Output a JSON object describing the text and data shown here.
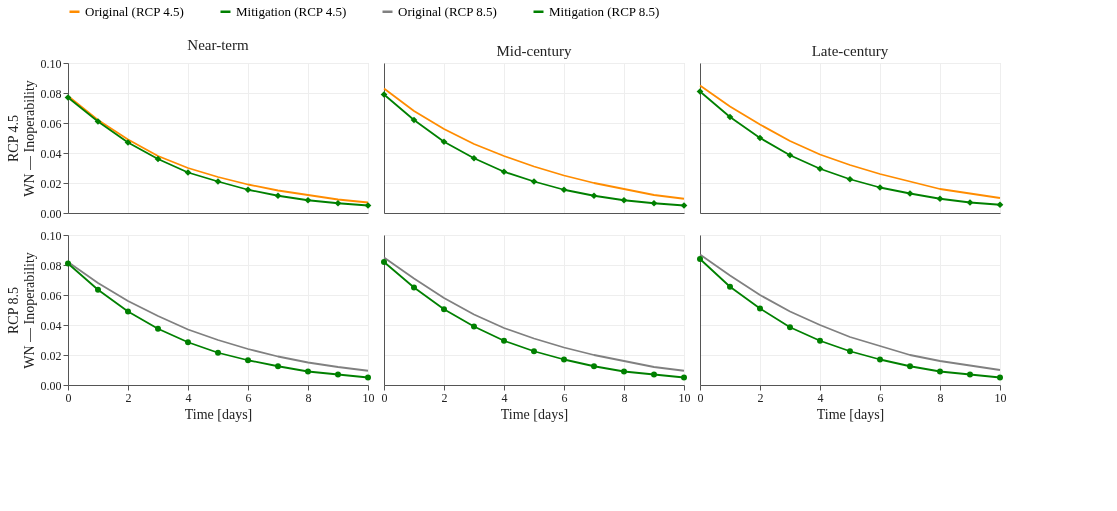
{
  "chart_data": [
    {
      "type": "line",
      "title": "Near-term",
      "ylabel": "RCP 4.5\nWN — Inoperability",
      "x": [
        0,
        1,
        2,
        3,
        4,
        5,
        6,
        7,
        8,
        9,
        10
      ],
      "xlim": [
        0,
        10
      ],
      "xticks": [
        0,
        2,
        4,
        6,
        8,
        10
      ],
      "ylim": [
        0,
        0.1
      ],
      "yticks": [
        {
          "value": 0,
          "label": "0.00"
        },
        {
          "value": 0.02,
          "label": "0.02"
        },
        {
          "value": 0.04,
          "label": "0.04"
        },
        {
          "value": 0.06,
          "label": "0.06"
        },
        {
          "value": 0.08,
          "label": "0.08"
        },
        {
          "value": 0.1,
          "label": "0.10"
        }
      ],
      "grid": true,
      "legend": "top",
      "tick_labels": "y",
      "series": [
        {
          "name": "Original (RCP 4.5)",
          "color": "#ff8c00",
          "marker": "none",
          "values": [
            0.078,
            0.062,
            0.049,
            0.038,
            0.03,
            0.024,
            0.019,
            0.015,
            0.012,
            0.009,
            0.007
          ]
        },
        {
          "name": "Mitigation (RCP 4.5)",
          "color": "#008000",
          "marker": "diamond",
          "values": [
            0.077,
            0.061,
            0.047,
            0.036,
            0.027,
            0.021,
            0.0155,
            0.0115,
            0.0085,
            0.0065,
            0.005
          ]
        }
      ]
    },
    {
      "type": "line",
      "title": "Mid-century",
      "x": [
        0,
        1,
        2,
        3,
        4,
        5,
        6,
        7,
        8,
        9,
        10
      ],
      "xlim": [
        0,
        10
      ],
      "xticks": [
        0,
        2,
        4,
        6,
        8,
        10
      ],
      "ylim": [
        0,
        0.1
      ],
      "yticks": [
        {
          "value": 0,
          "label": "0.00"
        },
        {
          "value": 0.02,
          "label": "0.02"
        },
        {
          "value": 0.04,
          "label": "0.04"
        },
        {
          "value": 0.06,
          "label": "0.06"
        },
        {
          "value": 0.08,
          "label": "0.08"
        },
        {
          "value": 0.1,
          "label": "0.10"
        }
      ],
      "grid": true,
      "legend": "top",
      "tick_labels": false,
      "series": [
        {
          "name": "Original (RCP 4.5)",
          "color": "#ff8c00",
          "marker": "none",
          "values": [
            0.083,
            0.068,
            0.056,
            0.046,
            0.038,
            0.031,
            0.025,
            0.02,
            0.016,
            0.012,
            0.0095
          ]
        },
        {
          "name": "Mitigation (RCP 4.5)",
          "color": "#008000",
          "marker": "diamond",
          "values": [
            0.079,
            0.062,
            0.0475,
            0.0365,
            0.0275,
            0.021,
            0.0155,
            0.0115,
            0.0085,
            0.0065,
            0.005
          ]
        }
      ]
    },
    {
      "type": "line",
      "title": "Late-century",
      "x": [
        0,
        1,
        2,
        3,
        4,
        5,
        6,
        7,
        8,
        9,
        10
      ],
      "xlim": [
        0,
        10
      ],
      "xticks": [
        0,
        2,
        4,
        6,
        8,
        10
      ],
      "ylim": [
        0,
        0.1
      ],
      "yticks": [
        {
          "value": 0,
          "label": "0.00"
        },
        {
          "value": 0.02,
          "label": "0.02"
        },
        {
          "value": 0.04,
          "label": "0.04"
        },
        {
          "value": 0.06,
          "label": "0.06"
        },
        {
          "value": 0.08,
          "label": "0.08"
        },
        {
          "value": 0.1,
          "label": "0.10"
        }
      ],
      "grid": true,
      "legend": "top",
      "tick_labels": false,
      "series": [
        {
          "name": "Original (RCP 4.5)",
          "color": "#ff8c00",
          "marker": "none",
          "values": [
            0.085,
            0.071,
            0.059,
            0.048,
            0.039,
            0.032,
            0.026,
            0.021,
            0.016,
            0.013,
            0.01
          ]
        },
        {
          "name": "Mitigation (RCP 4.5)",
          "color": "#008000",
          "marker": "diamond",
          "values": [
            0.081,
            0.064,
            0.05,
            0.0385,
            0.0295,
            0.0225,
            0.017,
            0.013,
            0.0095,
            0.007,
            0.0055
          ]
        }
      ]
    },
    {
      "type": "line",
      "xlabel": "Time [days]",
      "ylabel": "RCP 8.5\nWN — Inoperability",
      "x": [
        0,
        1,
        2,
        3,
        4,
        5,
        6,
        7,
        8,
        9,
        10
      ],
      "xlim": [
        0,
        10
      ],
      "xticks": [
        0,
        2,
        4,
        6,
        8,
        10
      ],
      "ylim": [
        0,
        0.1
      ],
      "yticks": [
        {
          "value": 0,
          "label": "0.00"
        },
        {
          "value": 0.02,
          "label": "0.02"
        },
        {
          "value": 0.04,
          "label": "0.04"
        },
        {
          "value": 0.06,
          "label": "0.06"
        },
        {
          "value": 0.08,
          "label": "0.08"
        },
        {
          "value": 0.1,
          "label": "0.10"
        }
      ],
      "grid": true,
      "legend": "top",
      "series": [
        {
          "name": "Original (RCP 8.5)",
          "color": "#808080",
          "marker": "none",
          "values": [
            0.082,
            0.068,
            0.056,
            0.046,
            0.037,
            0.03,
            0.024,
            0.019,
            0.015,
            0.012,
            0.0095
          ]
        },
        {
          "name": "Mitigation (RCP 8.5)",
          "color": "#008000",
          "marker": "circle",
          "values": [
            0.081,
            0.0635,
            0.049,
            0.0375,
            0.0285,
            0.0215,
            0.0165,
            0.0125,
            0.009,
            0.007,
            0.005
          ]
        }
      ]
    },
    {
      "type": "line",
      "xlabel": "Time [days]",
      "x": [
        0,
        1,
        2,
        3,
        4,
        5,
        6,
        7,
        8,
        9,
        10
      ],
      "xlim": [
        0,
        10
      ],
      "xticks": [
        0,
        2,
        4,
        6,
        8,
        10
      ],
      "ylim": [
        0,
        0.1
      ],
      "yticks": [
        {
          "value": 0,
          "label": "0.00"
        },
        {
          "value": 0.02,
          "label": "0.02"
        },
        {
          "value": 0.04,
          "label": "0.04"
        },
        {
          "value": 0.06,
          "label": "0.06"
        },
        {
          "value": 0.08,
          "label": "0.08"
        },
        {
          "value": 0.1,
          "label": "0.10"
        }
      ],
      "grid": true,
      "legend": "top",
      "tick_labels": "x",
      "series": [
        {
          "name": "Original (RCP 8.5)",
          "color": "#808080",
          "marker": "none",
          "values": [
            0.085,
            0.071,
            0.058,
            0.047,
            0.038,
            0.031,
            0.025,
            0.02,
            0.016,
            0.012,
            0.0095
          ]
        },
        {
          "name": "Mitigation (RCP 8.5)",
          "color": "#008000",
          "marker": "circle",
          "values": [
            0.082,
            0.065,
            0.0505,
            0.039,
            0.0295,
            0.0225,
            0.017,
            0.0125,
            0.009,
            0.007,
            0.005
          ]
        }
      ]
    },
    {
      "type": "line",
      "xlabel": "Time [days]",
      "x": [
        0,
        1,
        2,
        3,
        4,
        5,
        6,
        7,
        8,
        9,
        10
      ],
      "xlim": [
        0,
        10
      ],
      "xticks": [
        0,
        2,
        4,
        6,
        8,
        10
      ],
      "ylim": [
        0,
        0.1
      ],
      "yticks": [
        {
          "value": 0,
          "label": "0.00"
        },
        {
          "value": 0.02,
          "label": "0.02"
        },
        {
          "value": 0.04,
          "label": "0.04"
        },
        {
          "value": 0.06,
          "label": "0.06"
        },
        {
          "value": 0.08,
          "label": "0.08"
        },
        {
          "value": 0.1,
          "label": "0.10"
        }
      ],
      "grid": true,
      "legend": "top",
      "tick_labels": "x",
      "series": [
        {
          "name": "Original (RCP 8.5)",
          "color": "#808080",
          "marker": "none",
          "values": [
            0.087,
            0.073,
            0.06,
            0.049,
            0.04,
            0.032,
            0.026,
            0.02,
            0.016,
            0.013,
            0.01
          ]
        },
        {
          "name": "Mitigation (RCP 8.5)",
          "color": "#008000",
          "marker": "circle",
          "values": [
            0.084,
            0.0655,
            0.051,
            0.0385,
            0.0295,
            0.0225,
            0.017,
            0.0125,
            0.009,
            0.007,
            0.005
          ]
        }
      ]
    }
  ]
}
